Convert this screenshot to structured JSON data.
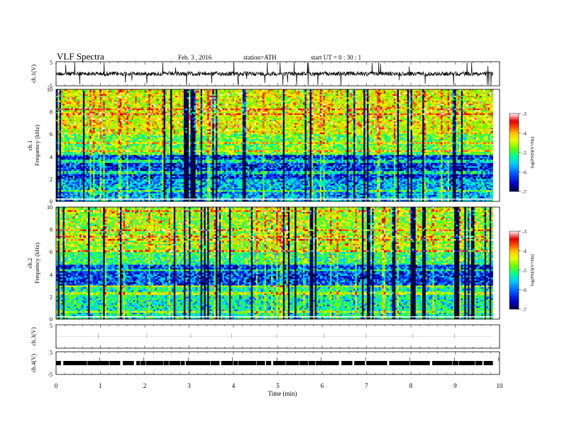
{
  "header": {
    "title": "VLF  Spectra",
    "date": "Feb. 3  , 2016",
    "station": "station=ATH",
    "start": "start  UT  =    0  : 30 : 1"
  },
  "chart_data": [
    {
      "type": "line",
      "title": "",
      "ylabel": "ch.1(V)",
      "ylim": [
        -5,
        5
      ],
      "yticks": [
        "5",
        "-5"
      ],
      "xlim": [
        0,
        10
      ],
      "description_values": "noise waveform centered near 0 V with occasional spikes"
    },
    {
      "type": "heatmap",
      "ylabel": "ch.1\nFrequency (kHz)",
      "ylabel_lines": [
        "ch.1",
        "Frequency  (kHz)"
      ],
      "ylim": [
        0,
        10
      ],
      "yticks": [
        0,
        2,
        4,
        6,
        8,
        10
      ],
      "xlim": [
        0,
        10
      ],
      "colorbar": {
        "label": "log(PSD)(V²/Hz)",
        "range": [
          -7,
          -3
        ],
        "ticks": [
          "-3",
          "-4",
          "-5",
          "-6",
          "-7"
        ]
      }
    },
    {
      "type": "heatmap",
      "ylabel_lines": [
        "ch.2",
        "Frequency  (kHz)"
      ],
      "ylim": [
        0,
        10
      ],
      "yticks": [
        0,
        2,
        4,
        6,
        8,
        10
      ],
      "xlim": [
        0,
        10
      ],
      "colorbar": {
        "label": "log(PSD)(V²/Hz)",
        "range": [
          -7,
          -3
        ],
        "ticks": [
          "-3",
          "-4",
          "-5",
          "-6",
          "-7"
        ]
      }
    },
    {
      "type": "line",
      "ylabel": "ch.3(V)",
      "ylim": [
        -5,
        5
      ],
      "yticks": [
        "5",
        ""
      ],
      "xlim": [
        0,
        10
      ]
    },
    {
      "type": "line",
      "ylabel": "ch.4(V)",
      "ylim": [
        -5,
        5
      ],
      "yticks": [
        "5",
        "-5"
      ],
      "xlim": [
        0,
        10
      ]
    }
  ],
  "xaxis": {
    "label": "Time  (min)",
    "ticks": [
      "0",
      "1",
      "2",
      "3",
      "4",
      "5",
      "6",
      "7",
      "8",
      "9",
      "10"
    ]
  },
  "colors": {
    "scale": [
      "#000040",
      "#0000c8",
      "#0050ff",
      "#00c8ff",
      "#00ff96",
      "#64ff00",
      "#e6ff00",
      "#ffc800",
      "#ff5000",
      "#e00000",
      "#ff9090",
      "#ffffff"
    ]
  }
}
